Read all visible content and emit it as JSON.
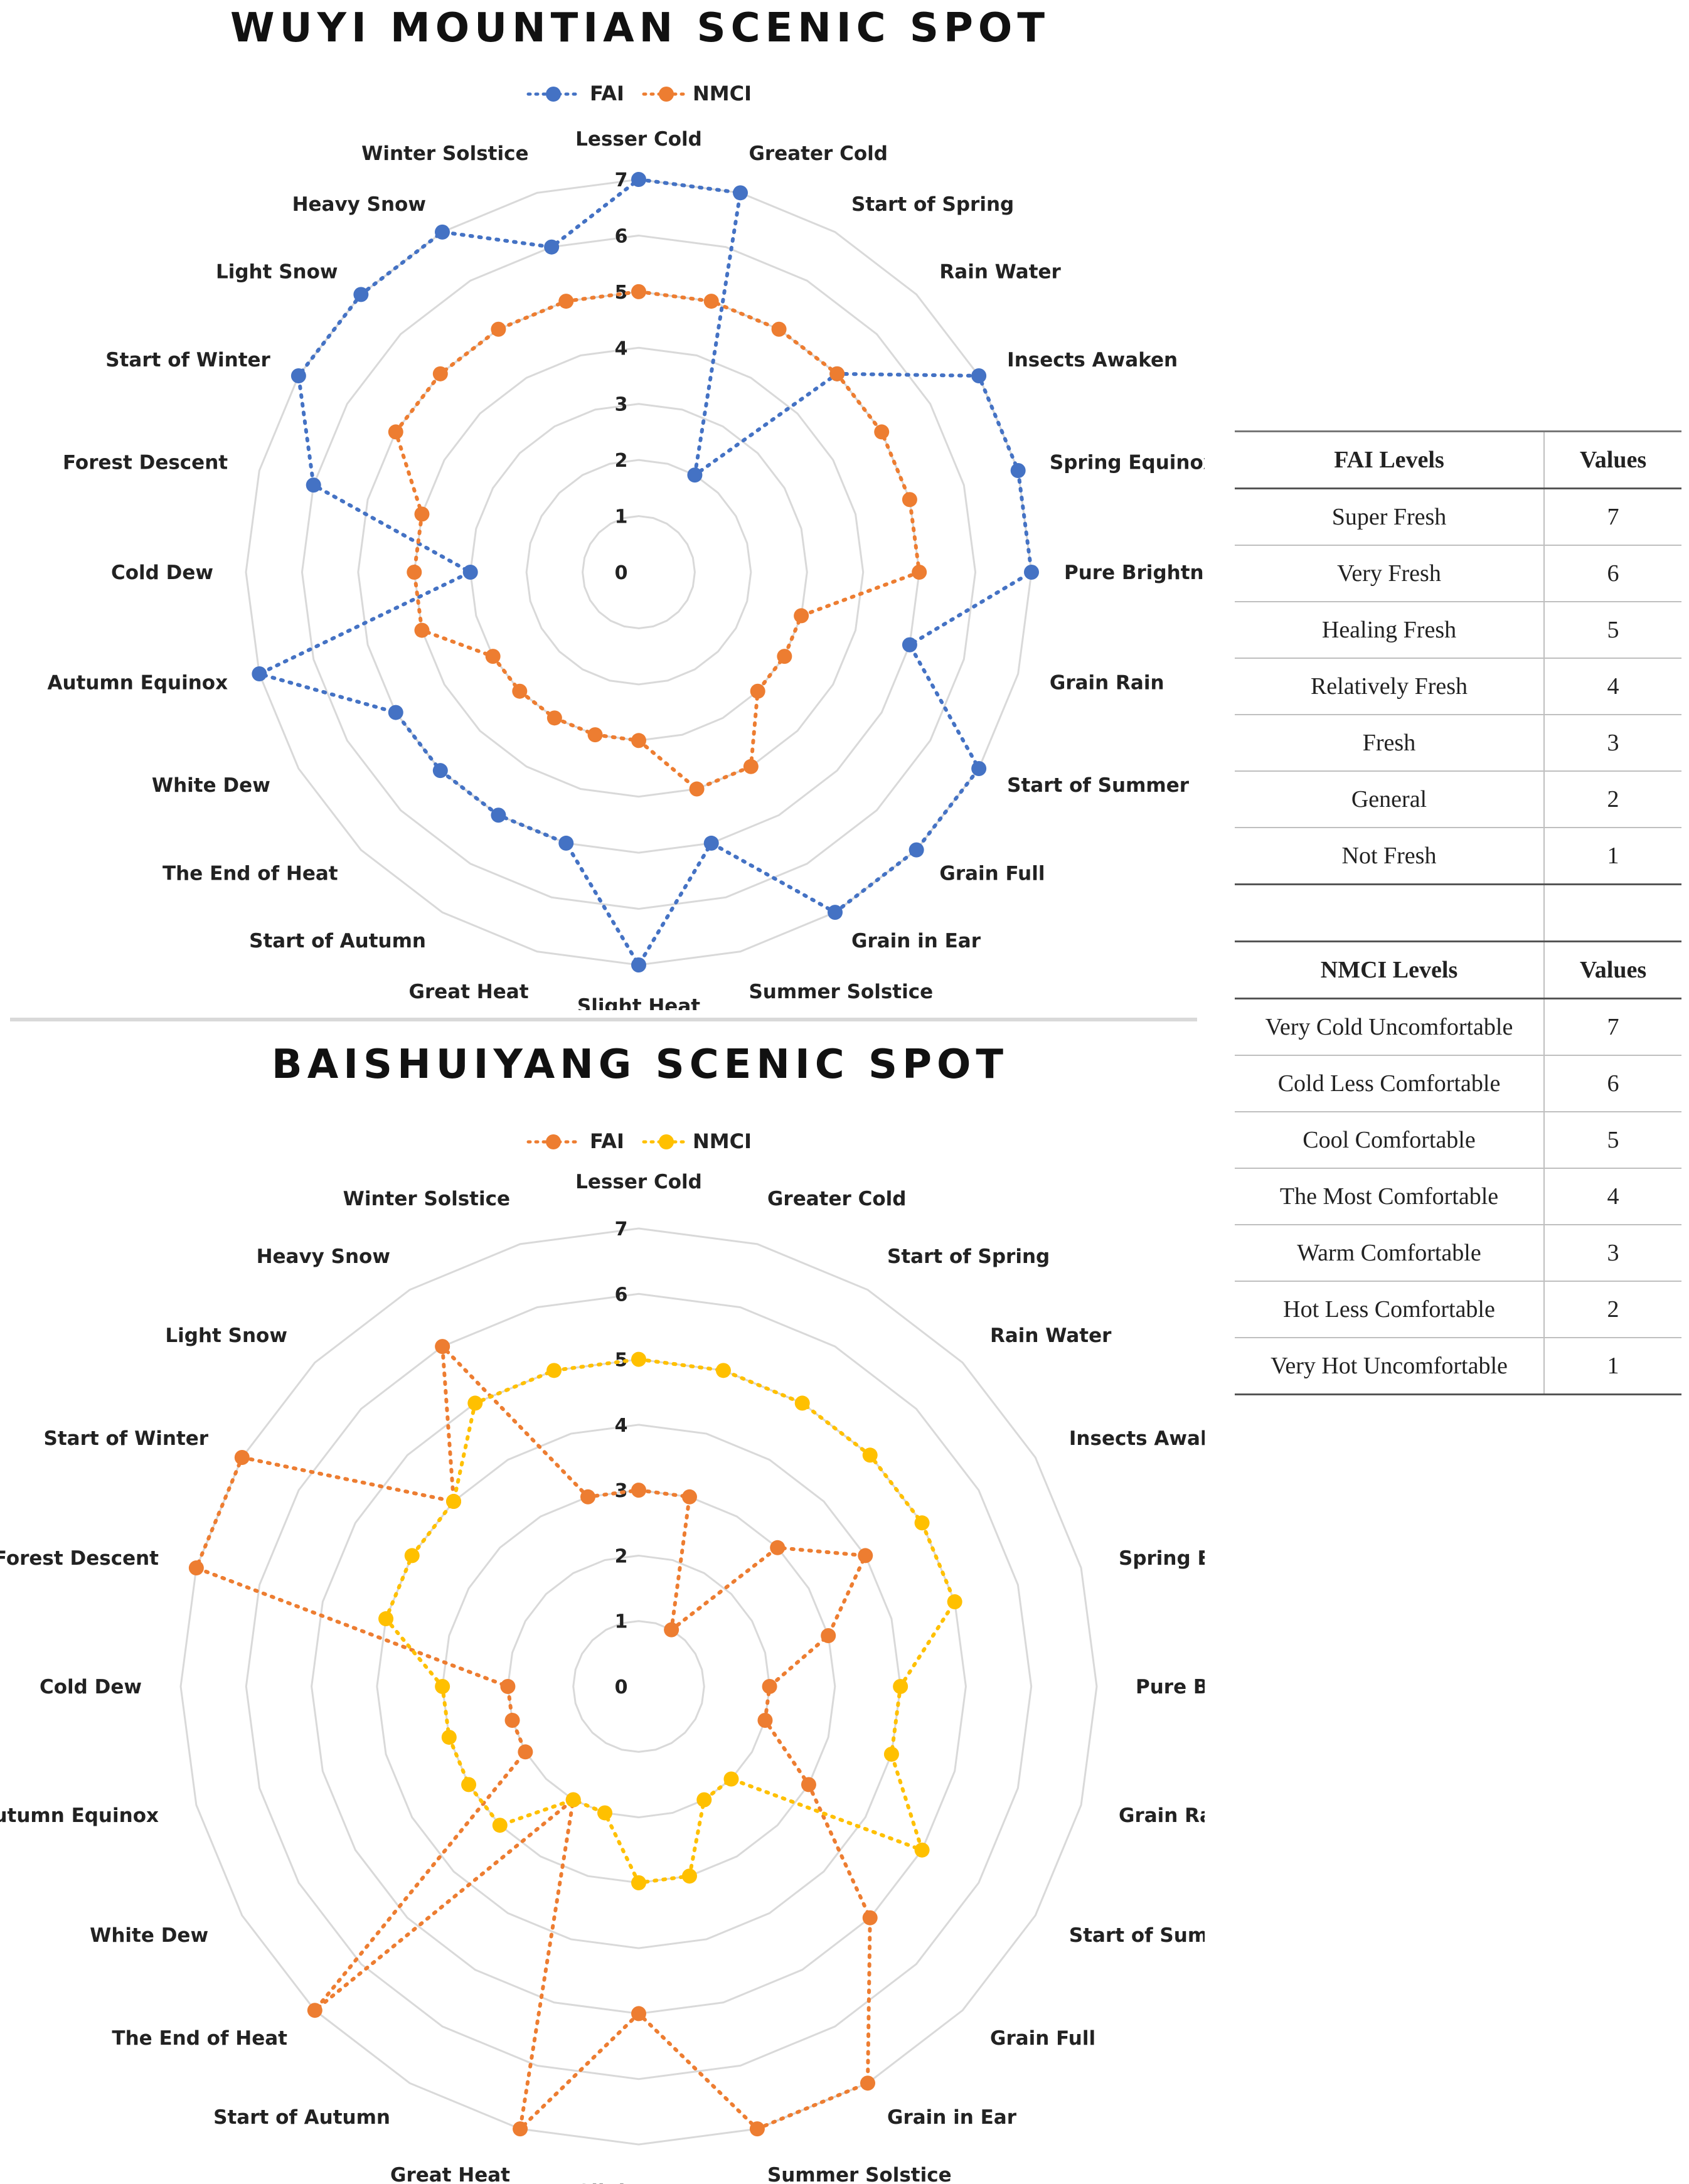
{
  "solar_terms": [
    "Lesser Cold",
    "Greater Cold",
    "Start of Spring",
    "Rain Water",
    "Insects Awaken",
    "Spring Equinox",
    "Pure Brightness",
    "Grain Rain",
    "Start of Summer",
    "Grain Full",
    "Grain in Ear",
    "Summer Solstice",
    "Slight Heat",
    "Great Heat",
    "Start of Autumn",
    "The End of Heat",
    "White Dew",
    "Autumn Equinox",
    "Cold Dew",
    "Forest Descent",
    "Start of Winter",
    "Light Snow",
    "Heavy Snow",
    "Winter Solstice"
  ],
  "chart_data": [
    {
      "type": "radar",
      "title": "WUYI MOUNTIAN SCENIC SPOT",
      "categories": [
        "Lesser Cold",
        "Greater Cold",
        "Start of Spring",
        "Rain Water",
        "Insects Awaken",
        "Spring Equinox",
        "Pure Brightness",
        "Grain Rain",
        "Start of Summer",
        "Grain Full",
        "Grain in Ear",
        "Summer Solstice",
        "Slight Heat",
        "Great Heat",
        "Start of Autumn",
        "The End of Heat",
        "White Dew",
        "Autumn Equinox",
        "Cold Dew",
        "Forest Descent",
        "Start of Winter",
        "Light Snow",
        "Heavy Snow",
        "Winter Solstice"
      ],
      "radial_ticks": [
        "0",
        "1",
        "2",
        "3",
        "4",
        "5",
        "6",
        "7"
      ],
      "rmin": 0,
      "rmax": 7,
      "legend_position": "top",
      "series": [
        {
          "name": "FAI",
          "color": "#4472c4",
          "values": [
            7,
            7,
            2,
            5,
            7,
            7,
            7,
            5,
            7,
            7,
            7,
            5,
            7,
            5,
            5,
            5,
            5,
            7,
            3,
            6,
            7,
            7,
            7,
            6
          ]
        },
        {
          "name": "NMCI",
          "color": "#ed7d31",
          "values": [
            5,
            5,
            5,
            5,
            5,
            5,
            5,
            3,
            3,
            3,
            4,
            4,
            3,
            3,
            3,
            3,
            3,
            4,
            4,
            4,
            5,
            5,
            5,
            5
          ]
        }
      ]
    },
    {
      "type": "radar",
      "title": "BAISHUIYANG SCENIC SPOT",
      "categories": [
        "Lesser Cold",
        "Greater Cold",
        "Start of Spring",
        "Rain Water",
        "Insects Awaken",
        "Spring Equinox",
        "Pure Brightness",
        "Grain Rain",
        "Start of Summer",
        "Grain Full",
        "Grain in Ear",
        "Summer Solstice",
        "Slight Heat",
        "Great Heat",
        "Start of Autumn",
        "The End of Heat",
        "White Dew",
        "Autumn Equinox",
        "Cold Dew",
        "Forest Descent",
        "Start of Winter",
        "Light Snow",
        "Heavy Snow",
        "Winter Solstice"
      ],
      "radial_ticks": [
        "0",
        "1",
        "2",
        "3",
        "4",
        "5",
        "6",
        "7"
      ],
      "rmin": 0,
      "rmax": 7,
      "legend_position": "top",
      "series": [
        {
          "name": "FAI",
          "color": "#ed7d31",
          "values": [
            3,
            3,
            1,
            3,
            4,
            3,
            2,
            2,
            3,
            5,
            7,
            7,
            5,
            7,
            2,
            7,
            2,
            2,
            2,
            7,
            7,
            4,
            6,
            3
          ]
        },
        {
          "name": "NMCI",
          "color": "#ffc000",
          "values": [
            5,
            5,
            5,
            5,
            5,
            5,
            4,
            4,
            5,
            2,
            2,
            3,
            3,
            2,
            2,
            3,
            3,
            3,
            3,
            4,
            4,
            4,
            5,
            5
          ]
        }
      ]
    }
  ],
  "fai_table": {
    "header": [
      "FAI Levels",
      "Values"
    ],
    "rows": [
      [
        "Super Fresh",
        "7"
      ],
      [
        "Very Fresh",
        "6"
      ],
      [
        "Healing Fresh",
        "5"
      ],
      [
        "Relatively Fresh",
        "4"
      ],
      [
        "Fresh",
        "3"
      ],
      [
        "General",
        "2"
      ],
      [
        "Not Fresh",
        "1"
      ]
    ]
  },
  "nmci_table": {
    "header": [
      "NMCI Levels",
      "Values"
    ],
    "rows": [
      [
        "Very Cold Uncomfortable",
        "7"
      ],
      [
        "Cold Less Comfortable",
        "6"
      ],
      [
        "Cool Comfortable",
        "5"
      ],
      [
        "The Most Comfortable",
        "4"
      ],
      [
        "Warm Comfortable",
        "3"
      ],
      [
        "Hot Less Comfortable",
        "2"
      ],
      [
        "Very Hot Uncomfortable",
        "1"
      ]
    ]
  }
}
